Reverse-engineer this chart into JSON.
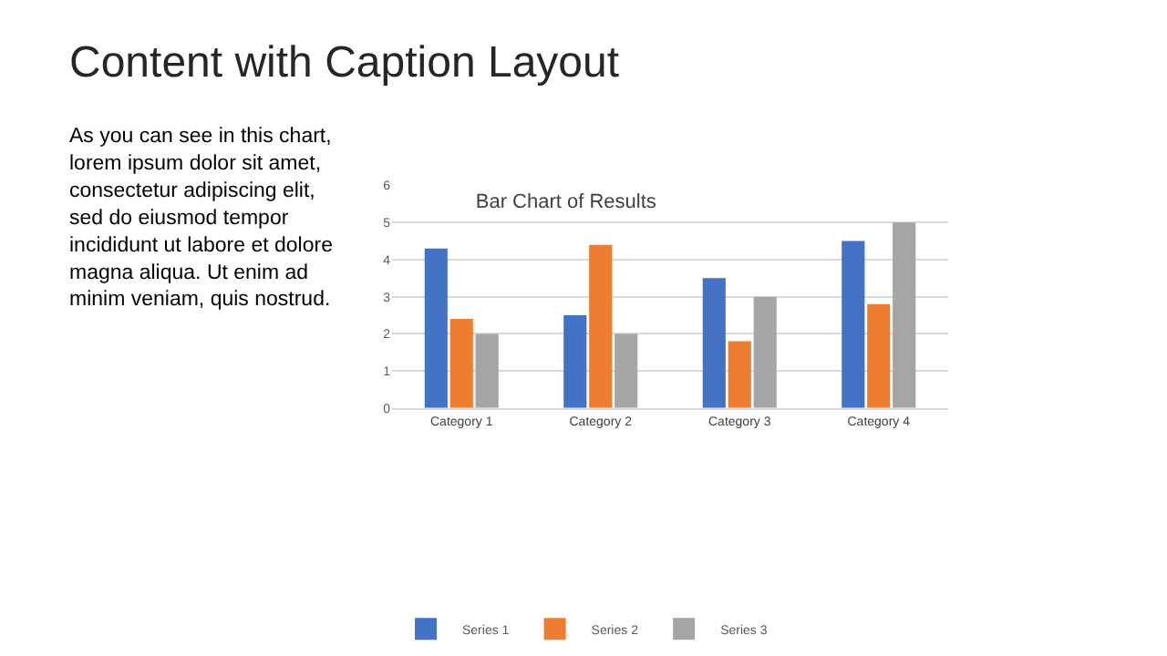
{
  "chart_data": {
    "type": "bar",
    "title": "Bar Chart of Results",
    "categories": [
      "Category 1",
      "Category 2",
      "Category 3",
      "Category 4"
    ],
    "series": [
      {
        "name": "Series 1",
        "color": "#4472c4",
        "values": [
          4.3,
          2.5,
          3.5,
          4.5
        ]
      },
      {
        "name": "Series 2",
        "color": "#ed7d31",
        "values": [
          2.4,
          4.4,
          1.8,
          2.8
        ]
      },
      {
        "name": "Series 3",
        "color": "#a5a5a5",
        "values": [
          2,
          2,
          3,
          5
        ]
      }
    ],
    "ylim": [
      0,
      6
    ],
    "yticks": [
      0,
      1,
      2,
      3,
      4,
      5,
      6
    ],
    "grid": "y",
    "legend": "bottom",
    "annotations": [
      "Content with Caption Layout",
      "As you can see in this chart,\nlorem ipsum dolor sit amet,\nconsectetur adipiscing elit,\nsed do eiusmod tempor\nincididunt ut labore et dolore\nmagna aliqua. Ut enim ad\nminim veniam, quis nostrud."
    ]
  }
}
